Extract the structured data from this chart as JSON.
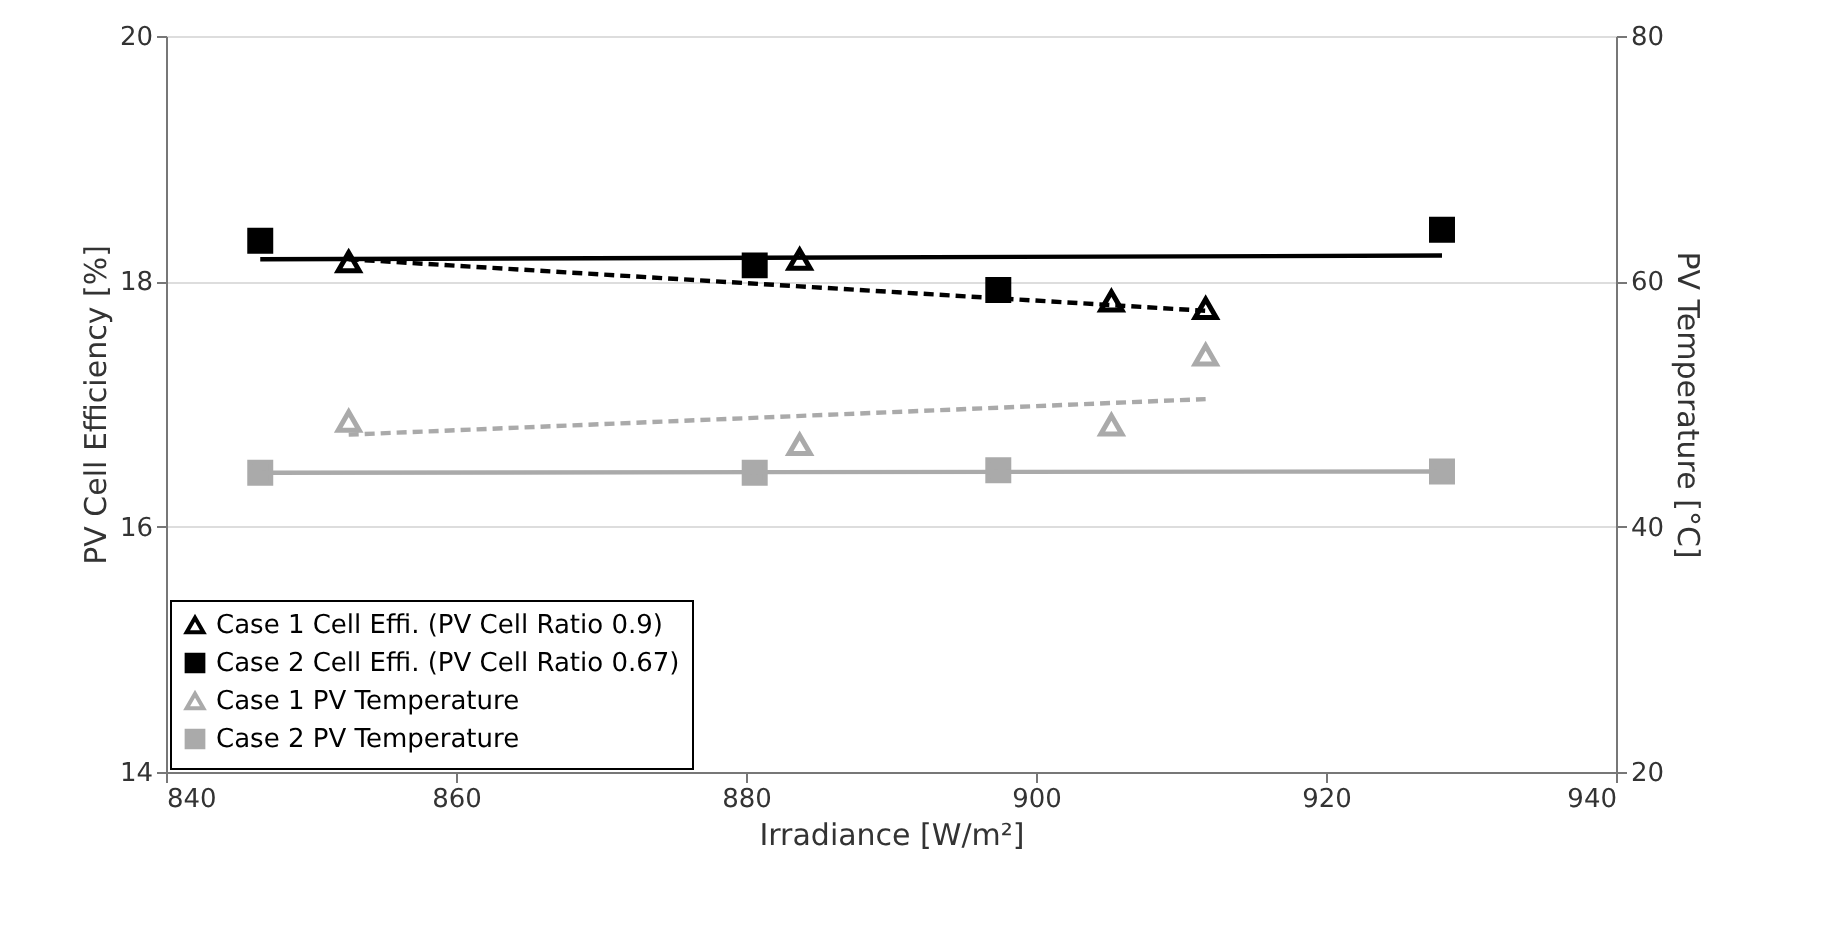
{
  "chart_data": {
    "type": "scatter",
    "xlabel": "Irradiance [W/m²]",
    "ylabel": "PV Cell Efficiency [%]",
    "y2label": "PV Temperature [°C]",
    "xlim": [
      840,
      940
    ],
    "xticks": [
      840,
      860,
      880,
      900,
      920,
      940
    ],
    "ylim": [
      14,
      20
    ],
    "yticks": [
      14,
      16,
      18,
      20
    ],
    "y2lim": [
      20,
      80
    ],
    "y2ticks": [
      20,
      40,
      60,
      80
    ],
    "grid": "y",
    "legend": "bottom left",
    "series": [
      {
        "name": "Case 1 Cell Effi. (PV Cell Ratio 0.9)",
        "color": "#000000",
        "marker": "triangle",
        "x": [
          852.6,
          883.7,
          905.2,
          911.7
        ],
        "values": [
          18.16,
          18.18,
          17.84,
          17.78
        ]
      },
      {
        "name": "Case 2 Cell Effi. (PV Cell Ratio 0.67)",
        "color": "#000000",
        "marker": "square",
        "x": [
          846.5,
          880.6,
          897.4,
          928.0
        ],
        "values": [
          18.33,
          18.13,
          17.93,
          18.42
        ]
      },
      {
        "name": "Case 1 PV Temperature",
        "color": "#aaaaaa",
        "marker": "triangle",
        "axis": "y2",
        "x": [
          852.6,
          883.7,
          905.2,
          911.7
        ],
        "values": [
          48.6,
          46.7,
          48.3,
          54.0
        ]
      },
      {
        "name": "Case 2 PV Temperature",
        "color": "#aaaaaa",
        "marker": "square",
        "axis": "y2",
        "x": [
          846.5,
          880.6,
          897.4,
          928.0
        ],
        "values": [
          44.4,
          44.4,
          44.6,
          44.5
        ]
      },
      {
        "type": "line",
        "color": "#000000",
        "line_style": "dashed",
        "x": [
          852.6,
          911.7
        ],
        "values": [
          18.18,
          17.76
        ]
      },
      {
        "type": "line",
        "color": "#000000",
        "line_style": "solid",
        "x": [
          846.5,
          928.0
        ],
        "values": [
          18.18,
          18.21
        ]
      },
      {
        "type": "line",
        "color": "#aaaaaa",
        "line_style": "dashed",
        "axis": "y2",
        "x": [
          852.6,
          911.7
        ],
        "values": [
          47.5,
          50.4
        ]
      },
      {
        "type": "line",
        "color": "#aaaaaa",
        "line_style": "solid",
        "axis": "y2",
        "x": [
          846.5,
          928.0
        ],
        "values": [
          44.4,
          44.5
        ]
      }
    ]
  }
}
